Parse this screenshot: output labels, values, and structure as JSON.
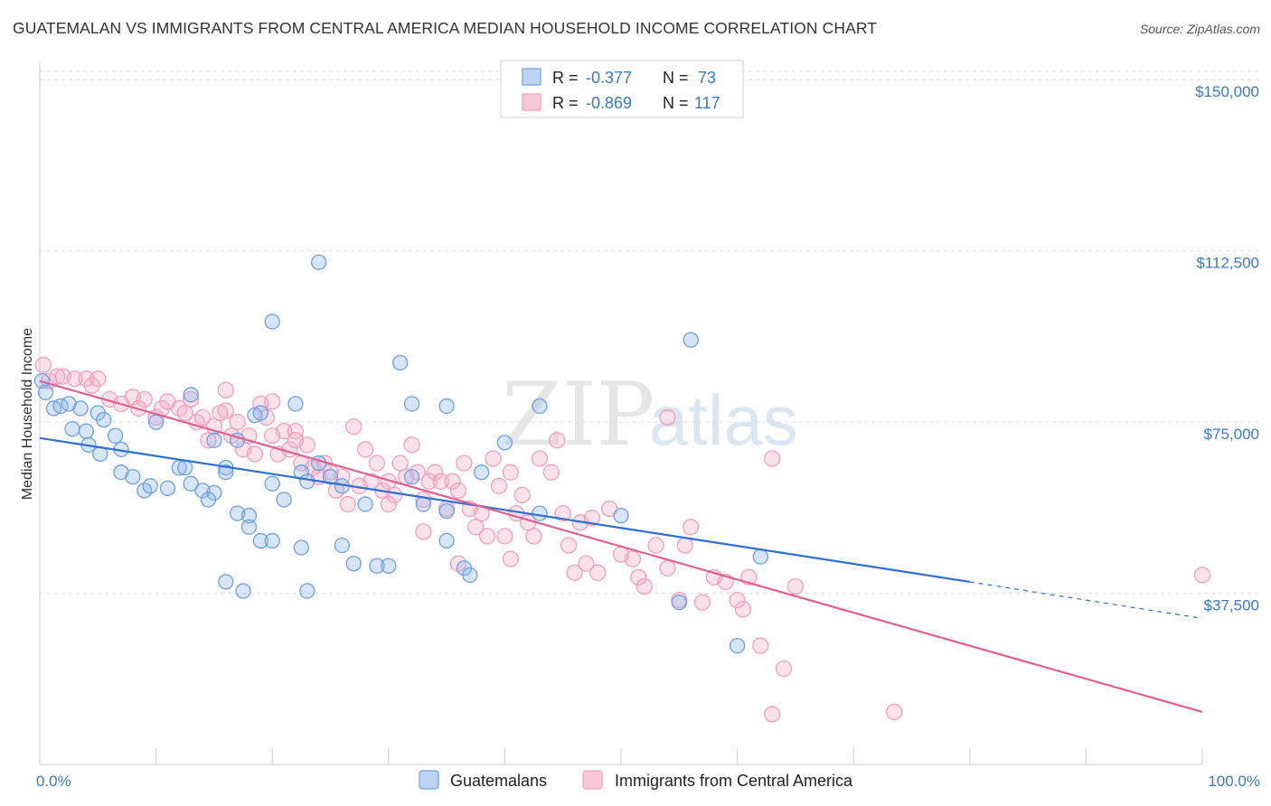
{
  "title": "GUATEMALAN VS IMMIGRANTS FROM CENTRAL AMERICA MEDIAN HOUSEHOLD INCOME CORRELATION CHART",
  "source": "Source: ZipAtlas.com",
  "watermark": {
    "zip": "ZIP",
    "atlas": "atlas"
  },
  "colors": {
    "blue": "#6fa0df",
    "blue_line": "#2f6fd0",
    "pink": "#f0a0bc",
    "pink_line": "#e0608f",
    "axis_text": "#3a78c8"
  },
  "legend": {
    "rows": [
      {
        "r_label": "R =",
        "r_value": "-0.377",
        "n_label": "N =",
        "n_value": "73"
      },
      {
        "r_label": "R =",
        "r_value": "-0.869",
        "n_label": "N =",
        "n_value": "117"
      }
    ]
  },
  "chart_data": {
    "type": "scatter",
    "title": "GUATEMALAN VS IMMIGRANTS FROM CENTRAL AMERICA MEDIAN HOUSEHOLD INCOME CORRELATION CHART",
    "xlabel": "",
    "ylabel": "Median Household Income",
    "x_tick_labels": [
      "0.0%",
      "100.0%"
    ],
    "y_tick_labels": [
      "$37,500",
      "$75,000",
      "$112,500",
      "$150,000"
    ],
    "y_ticks": [
      37500,
      75000,
      112500,
      150000
    ],
    "xlim": [
      0,
      100
    ],
    "ylim": [
      0,
      154000
    ],
    "grid": true,
    "legend_position": "top-center",
    "series": [
      {
        "name": "Guatemalans",
        "r": -0.377,
        "n": 73,
        "trend": {
          "x0": 0,
          "y0": 71500,
          "x1": 80,
          "y1": 40000,
          "dashed_to_x": 100,
          "dashed_to_y": 32000
        },
        "points": [
          [
            0.2,
            84000
          ],
          [
            0.5,
            81500
          ],
          [
            1.2,
            78000
          ],
          [
            1.8,
            78500
          ],
          [
            2.5,
            79000
          ],
          [
            3.5,
            78000
          ],
          [
            5,
            77000
          ],
          [
            5.5,
            75500
          ],
          [
            2.8,
            73500
          ],
          [
            4,
            73000
          ],
          [
            4.2,
            70000
          ],
          [
            6.5,
            72000
          ],
          [
            5.2,
            68000
          ],
          [
            7,
            69000
          ],
          [
            10,
            75000
          ],
          [
            13,
            81000
          ],
          [
            15,
            71000
          ],
          [
            17,
            71000
          ],
          [
            18.5,
            76500
          ],
          [
            19,
            77000
          ],
          [
            22,
            79000
          ],
          [
            32,
            79000
          ],
          [
            35,
            78500
          ],
          [
            43,
            78500
          ],
          [
            22.5,
            64000
          ],
          [
            16,
            65000
          ],
          [
            7,
            64000
          ],
          [
            8,
            63000
          ],
          [
            9,
            60000
          ],
          [
            9.5,
            61000
          ],
          [
            11,
            60500
          ],
          [
            12,
            65000
          ],
          [
            12.5,
            65000
          ],
          [
            13,
            61500
          ],
          [
            14,
            60000
          ],
          [
            15,
            59500
          ],
          [
            16,
            64000
          ],
          [
            20,
            61500
          ],
          [
            23,
            62000
          ],
          [
            24,
            66000
          ],
          [
            25,
            63000
          ],
          [
            26,
            61000
          ],
          [
            14.5,
            58000
          ],
          [
            17,
            55000
          ],
          [
            18,
            54500
          ],
          [
            21,
            58000
          ],
          [
            28,
            57000
          ],
          [
            33,
            57000
          ],
          [
            35,
            55500
          ],
          [
            43,
            55000
          ],
          [
            18,
            52000
          ],
          [
            19,
            49000
          ],
          [
            20,
            49000
          ],
          [
            22.5,
            47500
          ],
          [
            26,
            48000
          ],
          [
            27,
            44000
          ],
          [
            29,
            43500
          ],
          [
            30,
            43500
          ],
          [
            35,
            49000
          ],
          [
            36.5,
            43000
          ],
          [
            37,
            41500
          ],
          [
            16,
            40000
          ],
          [
            17.5,
            38000
          ],
          [
            23,
            38000
          ],
          [
            32,
            63000
          ],
          [
            38,
            64000
          ],
          [
            40,
            70500
          ],
          [
            50,
            54500
          ],
          [
            55,
            35500
          ],
          [
            60,
            26000
          ],
          [
            62,
            45500
          ],
          [
            24,
            110000
          ],
          [
            20,
            97000
          ],
          [
            31,
            88000
          ],
          [
            56,
            93000
          ]
        ]
      },
      {
        "name": "Immigrants from Central America",
        "r": -0.869,
        "n": 117,
        "trend": {
          "x0": 0,
          "y0": 84000,
          "x1": 100,
          "y1": 11500
        },
        "points": [
          [
            0.3,
            87500
          ],
          [
            0.8,
            84000
          ],
          [
            1.5,
            85000
          ],
          [
            2,
            85000
          ],
          [
            3,
            84500
          ],
          [
            4,
            84500
          ],
          [
            4.5,
            83000
          ],
          [
            5,
            84500
          ],
          [
            6,
            80000
          ],
          [
            7,
            79000
          ],
          [
            8,
            80500
          ],
          [
            8.5,
            78000
          ],
          [
            9,
            80000
          ],
          [
            10,
            76000
          ],
          [
            10.5,
            78000
          ],
          [
            11,
            79500
          ],
          [
            12,
            78000
          ],
          [
            12.5,
            77000
          ],
          [
            13,
            80000
          ],
          [
            13.5,
            75000
          ],
          [
            14,
            76000
          ],
          [
            14.5,
            71000
          ],
          [
            15,
            74000
          ],
          [
            15.5,
            77000
          ],
          [
            16,
            77500
          ],
          [
            16.5,
            72000
          ],
          [
            17,
            75000
          ],
          [
            17.5,
            69000
          ],
          [
            18,
            72000
          ],
          [
            18.5,
            68000
          ],
          [
            19,
            79000
          ],
          [
            19.5,
            76000
          ],
          [
            20,
            72000
          ],
          [
            20.5,
            68000
          ],
          [
            21,
            73000
          ],
          [
            21.5,
            69000
          ],
          [
            22,
            73000
          ],
          [
            22.5,
            66000
          ],
          [
            23,
            70000
          ],
          [
            23.5,
            65000
          ],
          [
            24,
            63000
          ],
          [
            24.5,
            66000
          ],
          [
            25,
            64000
          ],
          [
            25.5,
            60000
          ],
          [
            26,
            63000
          ],
          [
            26.5,
            57000
          ],
          [
            27,
            74000
          ],
          [
            27.5,
            61000
          ],
          [
            28,
            69000
          ],
          [
            28.5,
            62000
          ],
          [
            29,
            66000
          ],
          [
            29.5,
            60000
          ],
          [
            30,
            62000
          ],
          [
            30.5,
            59000
          ],
          [
            31,
            66000
          ],
          [
            31.5,
            63000
          ],
          [
            32,
            70000
          ],
          [
            32.5,
            64000
          ],
          [
            33,
            58000
          ],
          [
            33.5,
            62000
          ],
          [
            34,
            64000
          ],
          [
            34.5,
            62000
          ],
          [
            35,
            56000
          ],
          [
            35.5,
            62000
          ],
          [
            36,
            60000
          ],
          [
            36.5,
            66000
          ],
          [
            37,
            56000
          ],
          [
            37.5,
            52000
          ],
          [
            38,
            55000
          ],
          [
            38.5,
            50000
          ],
          [
            39,
            67000
          ],
          [
            39.5,
            61000
          ],
          [
            40,
            50000
          ],
          [
            40.5,
            64000
          ],
          [
            41,
            55000
          ],
          [
            41.5,
            59000
          ],
          [
            42,
            53000
          ],
          [
            42.5,
            50000
          ],
          [
            43,
            67000
          ],
          [
            44,
            64000
          ],
          [
            44.5,
            71000
          ],
          [
            45,
            55000
          ],
          [
            45.5,
            48000
          ],
          [
            46,
            42000
          ],
          [
            46.5,
            53000
          ],
          [
            47,
            44000
          ],
          [
            47.5,
            54000
          ],
          [
            48,
            42000
          ],
          [
            49,
            56000
          ],
          [
            50,
            46000
          ],
          [
            51,
            45000
          ],
          [
            51.5,
            41000
          ],
          [
            52,
            39000
          ],
          [
            53,
            48000
          ],
          [
            54,
            43000
          ],
          [
            55,
            36000
          ],
          [
            55.5,
            48000
          ],
          [
            56,
            52000
          ],
          [
            57,
            35500
          ],
          [
            58,
            41000
          ],
          [
            59,
            40000
          ],
          [
            60,
            36000
          ],
          [
            60.5,
            34000
          ],
          [
            61,
            41000
          ],
          [
            62,
            26000
          ],
          [
            63,
            67000
          ],
          [
            64,
            21000
          ],
          [
            65,
            39000
          ],
          [
            16,
            82000
          ],
          [
            20,
            79500
          ],
          [
            22,
            71000
          ],
          [
            54,
            76000
          ],
          [
            63,
            11000
          ],
          [
            73.5,
            11500
          ],
          [
            100,
            41500
          ],
          [
            30,
            57000
          ],
          [
            33,
            51000
          ],
          [
            36,
            44000
          ],
          [
            40.5,
            45000
          ]
        ]
      }
    ]
  },
  "bottom_legend": [
    {
      "label": "Guatemalans"
    },
    {
      "label": "Immigrants from Central America"
    }
  ]
}
